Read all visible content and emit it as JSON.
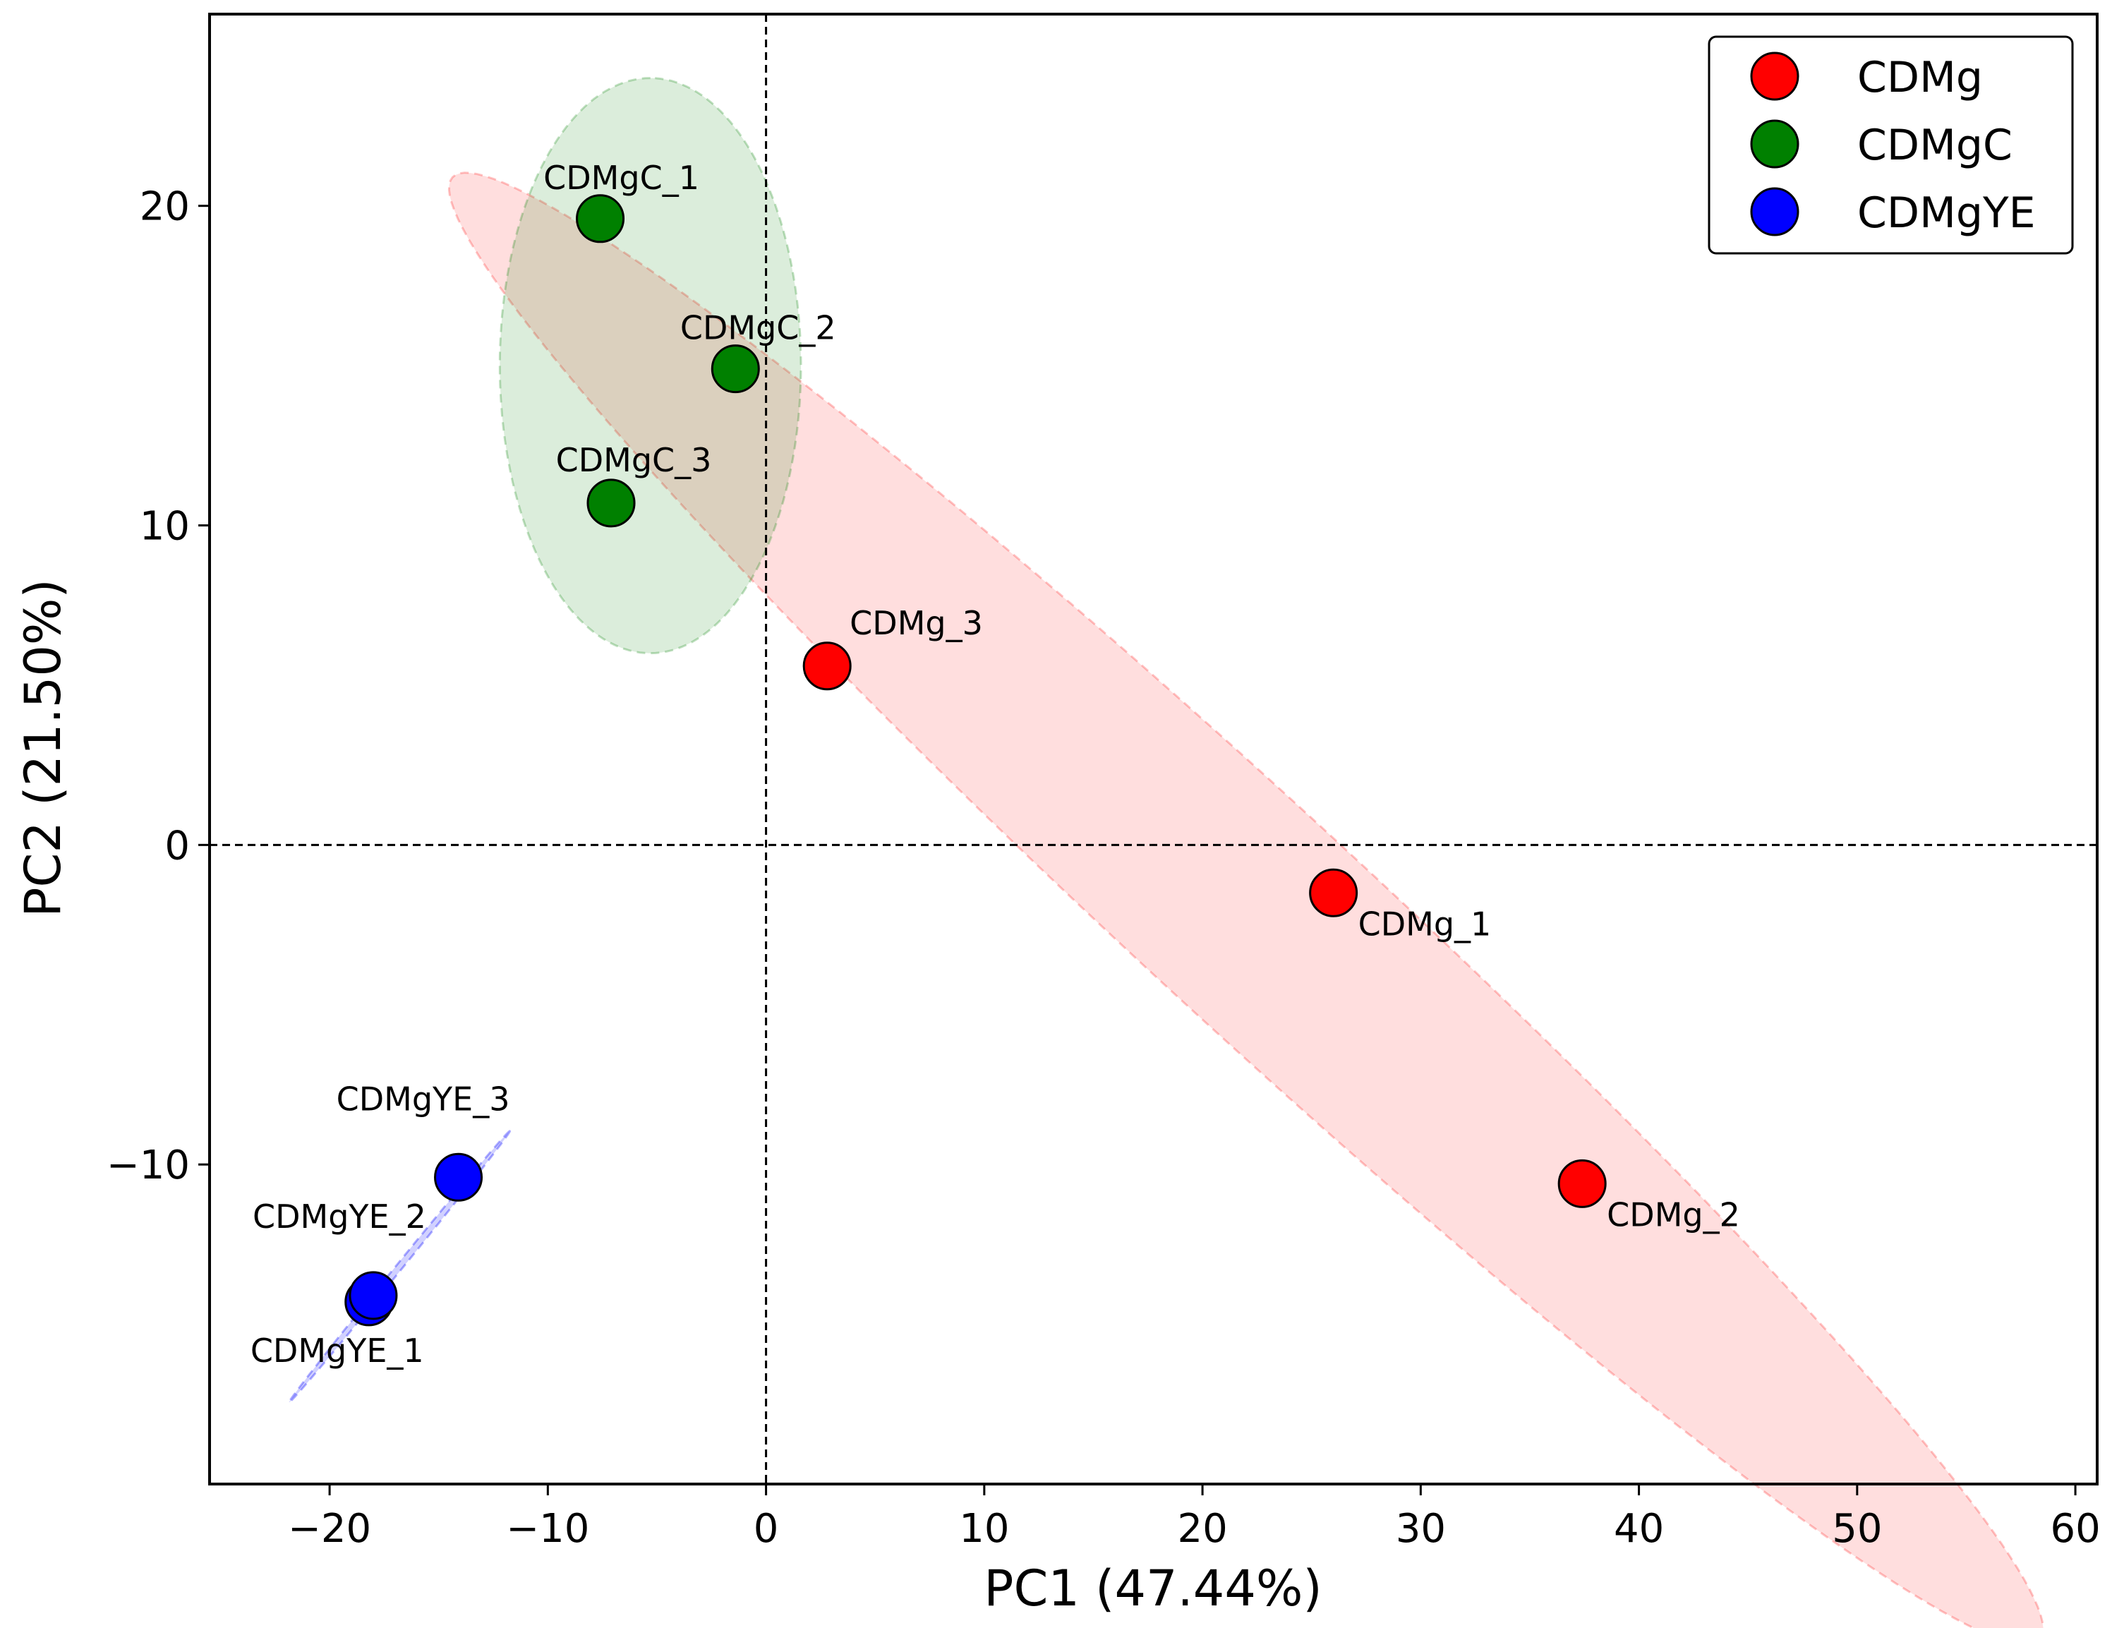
{
  "chart_data": {
    "type": "scatter",
    "title": "",
    "xlabel": "PC1 (47.44%)",
    "ylabel": "PC2 (21.50%)",
    "xlim": [
      -25.5,
      61
    ],
    "ylim": [
      -20,
      26
    ],
    "xticks": [
      -20,
      -10,
      0,
      10,
      20,
      30,
      40,
      50,
      60
    ],
    "xtick_labels": [
      "−20",
      "−10",
      "0",
      "10",
      "20",
      "30",
      "40",
      "50",
      "60"
    ],
    "yticks": [
      -10,
      0,
      10,
      20
    ],
    "ytick_labels": [
      "−10",
      "0",
      "10",
      "20"
    ],
    "reference_lines": {
      "x": 0,
      "y": 0,
      "style": "dashed"
    },
    "legend_position": "top-right",
    "series": [
      {
        "name": "CDMg",
        "color": "#ff0000",
        "points": [
          {
            "label": "CDMg_1",
            "x": 26.0,
            "y": -1.5
          },
          {
            "label": "CDMg_2",
            "x": 37.4,
            "y": -10.6
          },
          {
            "label": "CDMg_3",
            "x": 2.8,
            "y": 5.6
          }
        ],
        "ellipse": {
          "center": [
            22.0,
            -2.0
          ],
          "semi_major": 43.0,
          "semi_minor": 4.0,
          "angle_deg": -32.0,
          "fill": "#ff0000",
          "opacity": 0.13
        }
      },
      {
        "name": "CDMgC",
        "color": "#008000",
        "points": [
          {
            "label": "CDMgC_1",
            "x": -7.6,
            "y": 19.6
          },
          {
            "label": "CDMgC_2",
            "x": -1.4,
            "y": 14.9
          },
          {
            "label": "CDMgC_3",
            "x": -7.1,
            "y": 10.7
          }
        ],
        "ellipse": {
          "center": [
            -5.3,
            15.0
          ],
          "semi_major": 9.0,
          "semi_minor": 6.9,
          "angle_deg": 90.0,
          "fill": "#008000",
          "opacity": 0.14
        }
      },
      {
        "name": "CDMgYE",
        "color": "#0000ff",
        "points": [
          {
            "label": "CDMgYE_1",
            "x": -18.2,
            "y": -14.3
          },
          {
            "label": "CDMgYE_2",
            "x": -18.0,
            "y": -14.1
          },
          {
            "label": "CDMgYE_3",
            "x": -14.1,
            "y": -10.4
          }
        ],
        "ellipse": {
          "center": [
            -16.8,
            -13.2
          ],
          "semi_major": 6.6,
          "semi_minor": 0.12,
          "angle_deg": 40.0,
          "fill": "#0000ff",
          "opacity": 0.18
        }
      }
    ]
  }
}
